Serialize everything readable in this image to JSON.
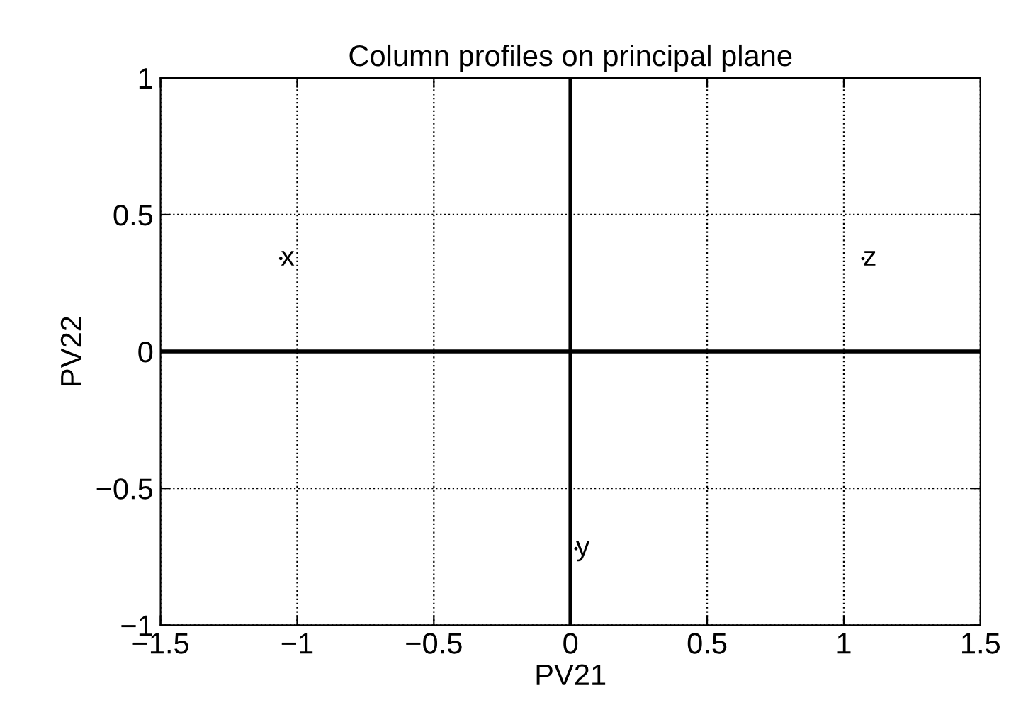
{
  "chart_data": {
    "type": "scatter",
    "title": "Column profiles on principal plane",
    "xlabel": "PV21",
    "ylabel": "PV22",
    "series": [
      {
        "name": "x",
        "color": "#000000",
        "x": [
          -1.06
        ],
        "values": [
          0.34
        ]
      },
      {
        "name": "y",
        "color": "#000000",
        "x": [
          0.02
        ],
        "values": [
          -0.72
        ]
      },
      {
        "name": "z",
        "color": "#000000",
        "x": [
          1.07
        ],
        "values": [
          0.34
        ]
      },
      {
        "type": "line",
        "color": "#000000",
        "x": [
          -1.5,
          1.5
        ],
        "values": [
          0,
          0
        ]
      },
      {
        "type": "line",
        "color": "#000000",
        "x": [
          0,
          0
        ],
        "values": [
          -1,
          1
        ]
      }
    ],
    "marker": "none",
    "legend": false,
    "grid": true,
    "xlim": [
      -1.5,
      1.5
    ],
    "ylim": [
      -1,
      1
    ],
    "xticks": [
      {
        "value": -1.5,
        "label": "−1.5"
      },
      {
        "value": -1,
        "label": "−1"
      },
      {
        "value": -0.5,
        "label": "−0.5"
      },
      0,
      0.5,
      1,
      1.5
    ],
    "yticks": [
      {
        "value": -1,
        "label": "−1"
      },
      {
        "value": -0.5,
        "label": "−0.5"
      },
      0,
      0.5,
      1
    ]
  }
}
